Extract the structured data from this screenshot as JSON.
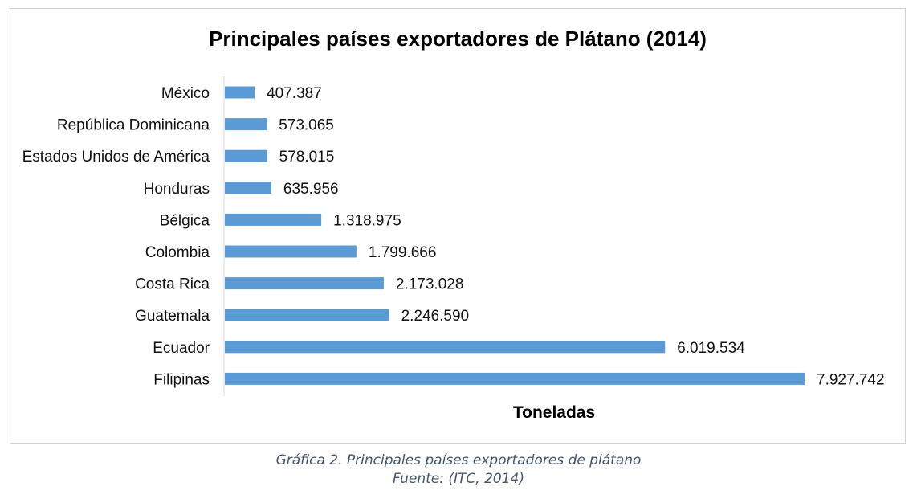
{
  "chart_data": {
    "type": "bar",
    "orientation": "horizontal",
    "title": "Principales países exportadores de Plátano (2014)",
    "xlabel": "Toneladas",
    "ylabel": "",
    "bar_color": "#5b9bd5",
    "categories": [
      "México",
      "República Dominicana",
      "Estados Unidos de América",
      "Honduras",
      "Bélgica",
      "Colombia",
      "Costa Rica",
      "Guatemala",
      "Ecuador",
      "Filipinas"
    ],
    "values": [
      407387,
      573065,
      578015,
      635956,
      1318975,
      1799666,
      2173028,
      2246590,
      6019534,
      7927742
    ],
    "value_labels": [
      "407.387",
      "573.065",
      "578.015",
      "635.956",
      "1.318.975",
      "1.799.666",
      "2.173.028",
      "2.246.590",
      "6.019.534",
      "7.927.742"
    ],
    "xlim": [
      0,
      7927742
    ],
    "grid": false,
    "legend": "none"
  },
  "caption": {
    "line1": "Gráfica 2. Principales países exportadores de plátano",
    "line2": "Fuente: (ITC, 2014)"
  }
}
